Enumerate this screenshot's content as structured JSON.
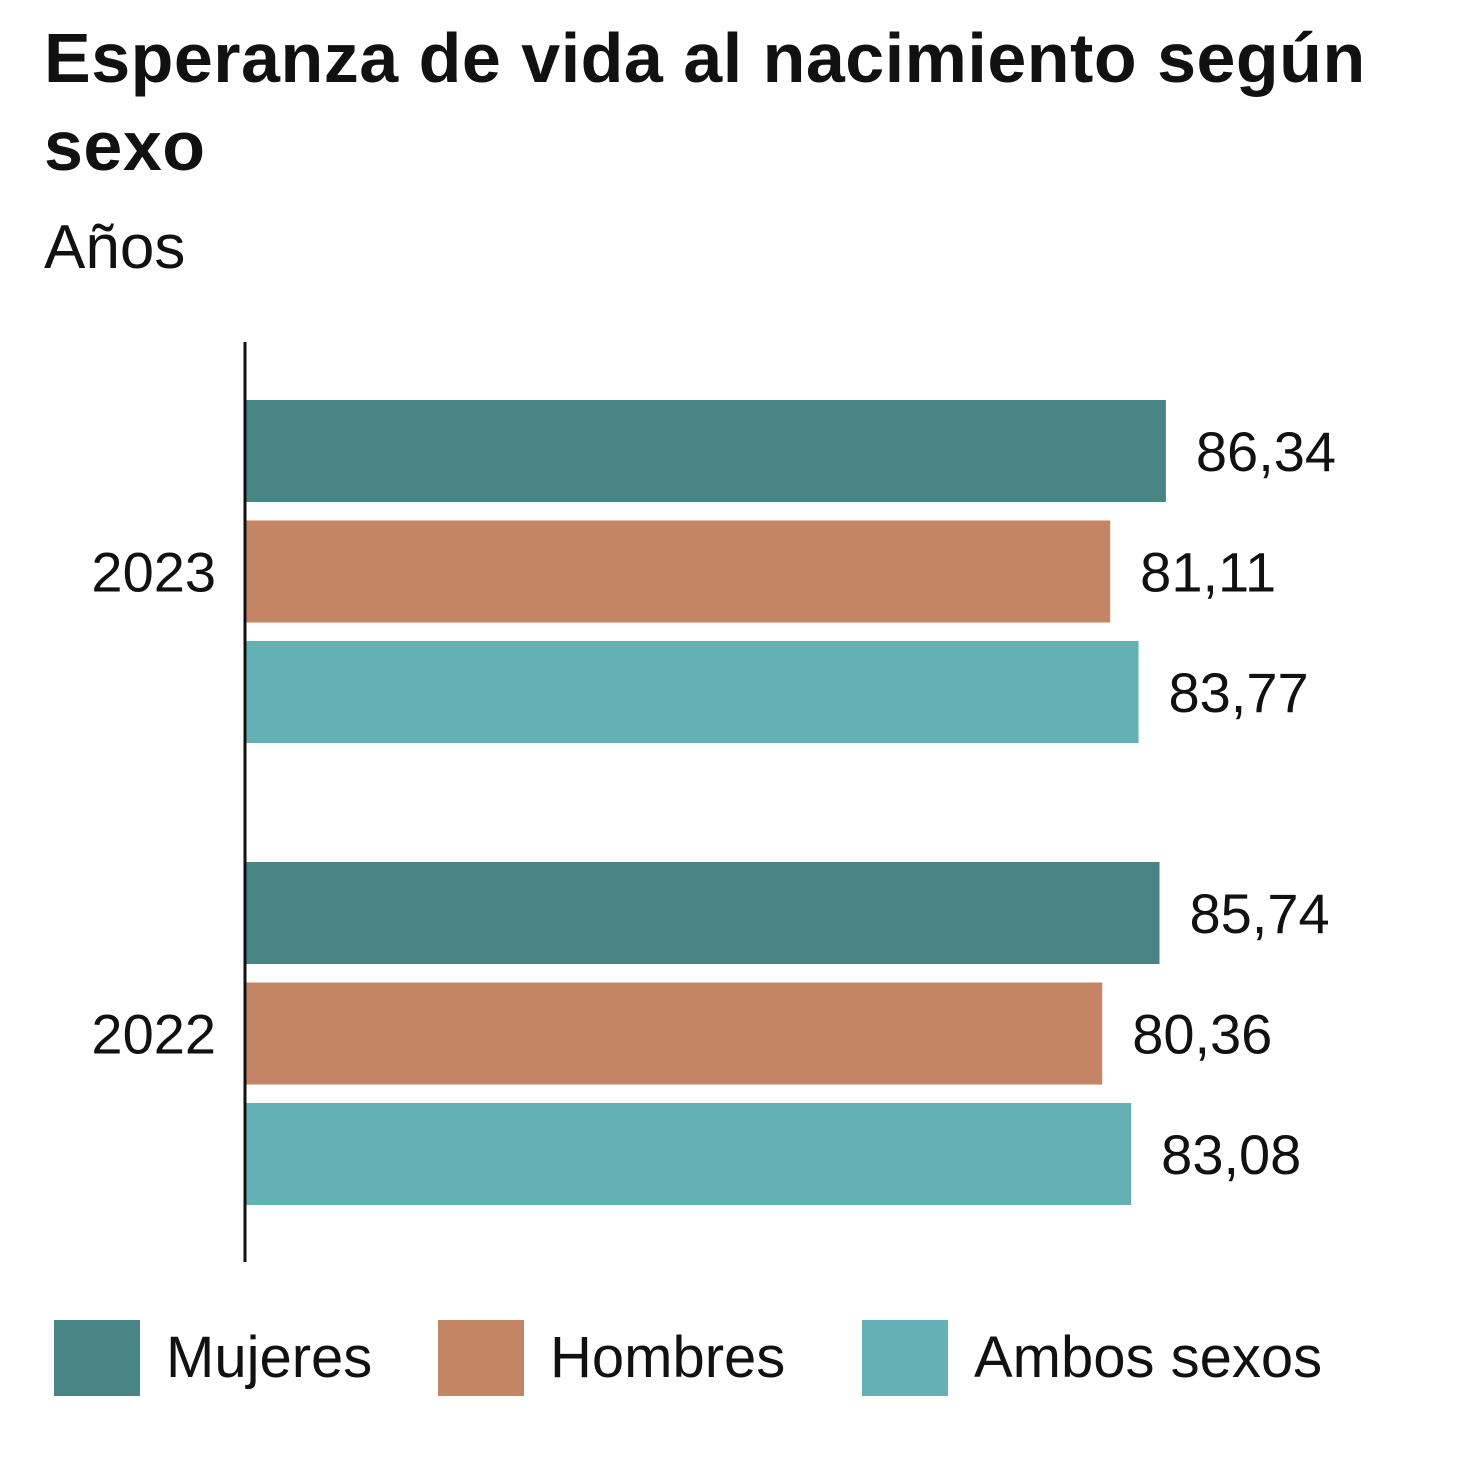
{
  "chart_data": {
    "type": "bar",
    "orientation": "horizontal",
    "title": "Esperanza de vida al nacimiento según sexo",
    "subtitle": "Años",
    "categories": [
      "2023",
      "2022"
    ],
    "series": [
      {
        "name": "Mujeres",
        "color": "#478483",
        "values": [
          86.34,
          85.74
        ],
        "labels": [
          "86,34",
          "85,74"
        ]
      },
      {
        "name": "Hombres",
        "color": "#c38563",
        "values": [
          81.11,
          80.36
        ],
        "labels": [
          "81,11",
          "80,36"
        ]
      },
      {
        "name": "Ambos sexos",
        "color": "#63b1b4",
        "values": [
          83.77,
          83.08
        ],
        "labels": [
          "83,77",
          "83,08"
        ]
      }
    ],
    "xlim": [
      0,
      90
    ],
    "grid": false,
    "legend_position": "bottom"
  }
}
